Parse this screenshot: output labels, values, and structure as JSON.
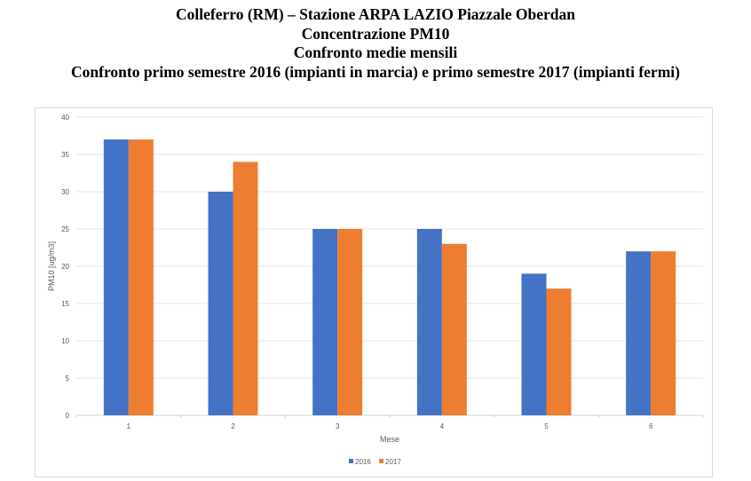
{
  "title_lines": [
    "Colleferro (RM) – Stazione ARPA LAZIO Piazzale Oberdan",
    "Concentrazione PM10",
    "Confronto medie mensili",
    "Confronto primo semestre 2016 (impianti in marcia) e primo semestre 2017 (impianti fermi)"
  ],
  "chart_data": {
    "type": "bar",
    "title": "Colleferro (RM) – Stazione ARPA LAZIO Piazzale Oberdan / Concentrazione PM10 / Confronto medie mensili / Confronto primo semestre 2016 (impianti in marcia) e primo semestre 2017 (impianti fermi)",
    "categories": [
      "1",
      "2",
      "3",
      "4",
      "5",
      "6"
    ],
    "series": [
      {
        "name": "2016",
        "color": "#4472c4",
        "values": [
          37,
          30,
          25,
          25,
          19,
          22
        ]
      },
      {
        "name": "2017",
        "color": "#ed7d31",
        "values": [
          37,
          34,
          25,
          23,
          17,
          22
        ]
      }
    ],
    "xlabel": "Mese",
    "ylabel": "PM10 [ug/m3]",
    "ylim": [
      0,
      40
    ],
    "yticks": [
      0,
      5,
      10,
      15,
      20,
      25,
      30,
      35,
      40
    ],
    "grid": true,
    "legend_position": "bottom"
  }
}
